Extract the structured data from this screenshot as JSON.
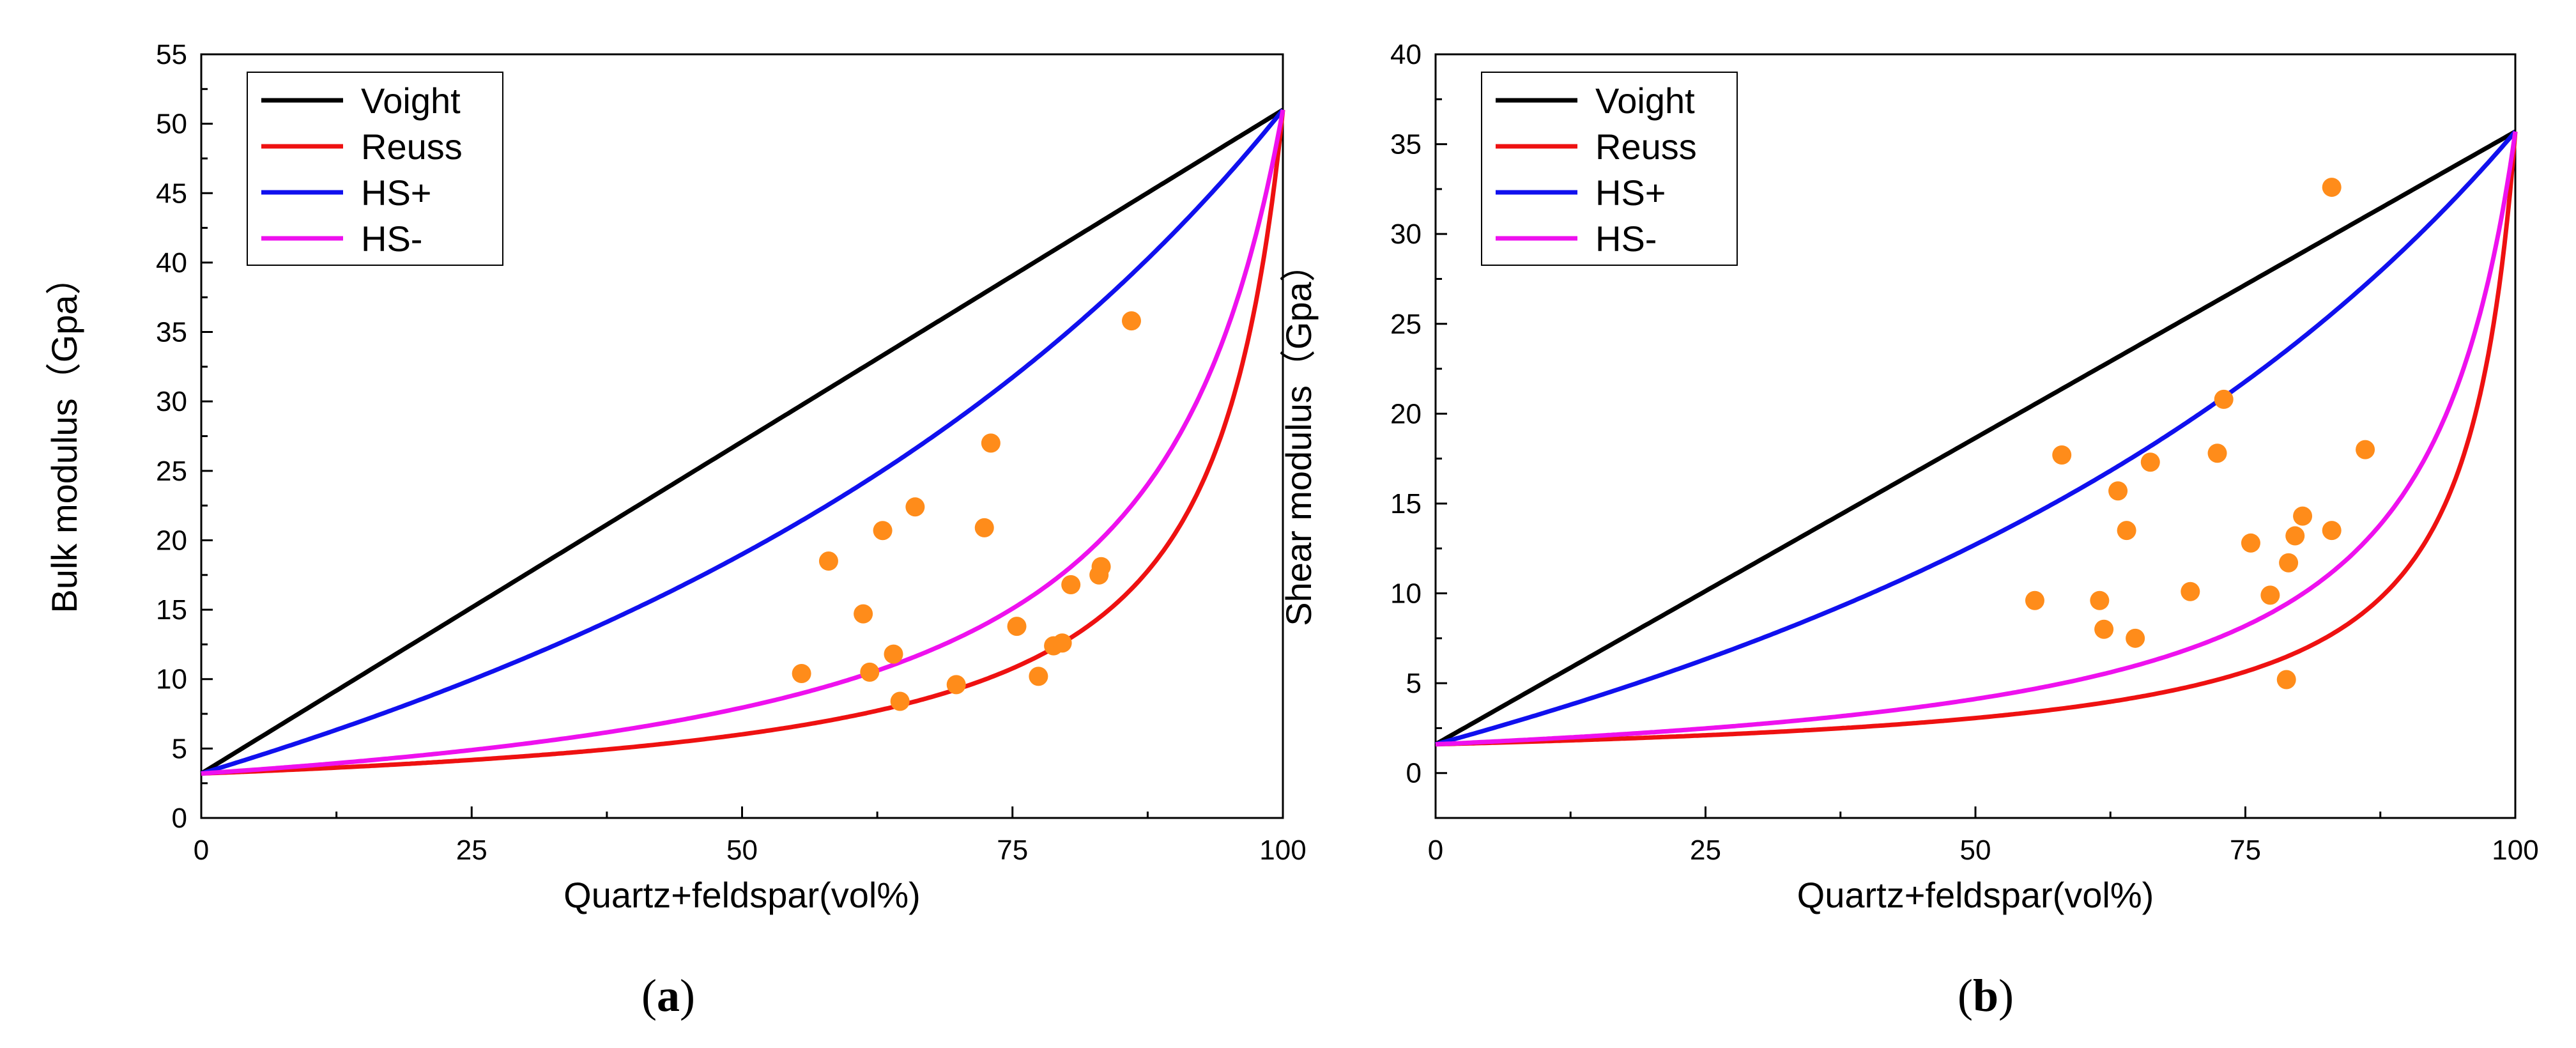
{
  "colors": {
    "voight": "#000000",
    "reuss": "#ee1111",
    "hsplus": "#1010ee",
    "hsminus": "#ee11ee",
    "points": "#ff8c1a"
  },
  "chart_data": [
    {
      "type": "line",
      "caption": {
        "open": "(",
        "letter": "a",
        "close": ")"
      },
      "xlabel": "Quartz+feldspar(vol%)",
      "ylabel": "Bulk modulus（Gpa）",
      "xlim": [
        0,
        100
      ],
      "ylim": [
        0,
        55
      ],
      "xticks": [
        0,
        25,
        50,
        75,
        100
      ],
      "yticks": [
        0,
        5,
        10,
        15,
        20,
        25,
        30,
        35,
        40,
        45,
        50,
        55
      ],
      "endpoints": {
        "x0": 3.2,
        "x100": 51
      },
      "legend": {
        "position": "top-left",
        "entries": [
          "Voight",
          "Reuss",
          "HS+",
          "HS-"
        ]
      },
      "series": [
        {
          "name": "Voight",
          "kind": "voigt"
        },
        {
          "name": "Reuss",
          "kind": "reuss"
        },
        {
          "name": "HS+",
          "kind": "hsplus"
        },
        {
          "name": "HS-",
          "kind": "hsminus"
        }
      ],
      "scatter": {
        "x": [
          55.5,
          58,
          61.2,
          61.8,
          63,
          64,
          64.6,
          66,
          69.8,
          72.4,
          73,
          75.4,
          77.4,
          78.8,
          79.6,
          80.4,
          83,
          83.2,
          86
        ],
        "y": [
          10.4,
          18.5,
          14.7,
          10.5,
          20.7,
          11.8,
          8.4,
          22.4,
          9.6,
          20.9,
          27,
          13.8,
          10.2,
          12.4,
          12.6,
          16.8,
          17.5,
          18.1,
          35.8
        ]
      }
    },
    {
      "type": "line",
      "caption": {
        "open": "(",
        "letter": "b",
        "close": ")"
      },
      "xlabel": "Quartz+feldspar(vol%)",
      "ylabel": "Shear modulus（Gpa）",
      "xlim": [
        0,
        100
      ],
      "ylim": [
        -2.5,
        40
      ],
      "xticks": [
        0,
        25,
        50,
        75,
        100
      ],
      "yticks": [
        0,
        5,
        10,
        15,
        20,
        25,
        30,
        35,
        40
      ],
      "endpoints": {
        "x0": 1.6,
        "x100": 35.7
      },
      "legend": {
        "position": "top-left",
        "entries": [
          "Voight",
          "Reuss",
          "HS+",
          "HS-"
        ]
      },
      "series": [
        {
          "name": "Voight",
          "kind": "voigt"
        },
        {
          "name": "Reuss",
          "kind": "reuss"
        },
        {
          "name": "HS+",
          "kind": "hsplus"
        },
        {
          "name": "HS-",
          "kind": "hsminus"
        }
      ],
      "scatter": {
        "x": [
          55.5,
          58,
          61.5,
          61.9,
          63.2,
          64,
          64.8,
          66.2,
          69.9,
          72.4,
          73,
          75.5,
          77.3,
          78.8,
          79,
          79.6,
          80.3,
          83,
          83,
          86.1
        ],
        "y": [
          9.6,
          17.7,
          9.6,
          8.0,
          15.7,
          13.5,
          7.5,
          17.3,
          10.1,
          17.8,
          20.8,
          12.8,
          9.9,
          5.2,
          11.7,
          13.2,
          14.3,
          13.5,
          32.6,
          18.0
        ]
      }
    }
  ]
}
